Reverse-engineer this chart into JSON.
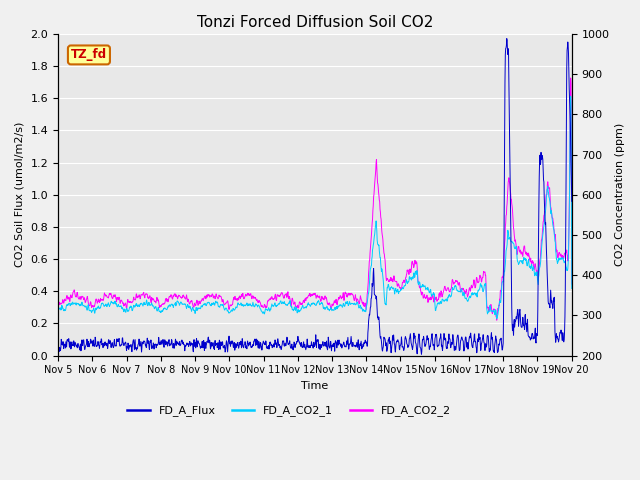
{
  "title": "Tonzi Forced Diffusion Soil CO2",
  "xlabel": "Time",
  "ylabel_left": "CO2 Soil Flux (umol/m2/s)",
  "ylabel_right": "CO2 Concentration (ppm)",
  "ylim_left": [
    0.0,
    2.0
  ],
  "ylim_right": [
    200,
    1000
  ],
  "xtick_labels": [
    "Nov 5",
    "Nov 6",
    "Nov 7",
    "Nov 8",
    "Nov 9",
    "Nov 10",
    "Nov 11",
    "Nov 12",
    "Nov 13",
    "Nov 14",
    "Nov 15",
    "Nov 16",
    "Nov 17",
    "Nov 18",
    "Nov 19",
    "Nov 20"
  ],
  "legend_labels": [
    "FD_A_Flux",
    "FD_A_CO2_1",
    "FD_A_CO2_2"
  ],
  "colors": [
    "#0000cc",
    "#00ccff",
    "#ff00ff"
  ],
  "tag_text": "TZ_fd",
  "tag_facecolor": "#ffff99",
  "tag_edgecolor": "#cc6600",
  "tag_textcolor": "#cc0000",
  "plot_bgcolor": "#e8e8e8",
  "grid_color": "#ffffff",
  "fig_bgcolor": "#f0f0f0",
  "title_fontsize": 11,
  "axis_fontsize": 8,
  "tick_fontsize": 8,
  "legend_fontsize": 8,
  "n_days": 15,
  "n_per_day": 96,
  "seed": 12345
}
